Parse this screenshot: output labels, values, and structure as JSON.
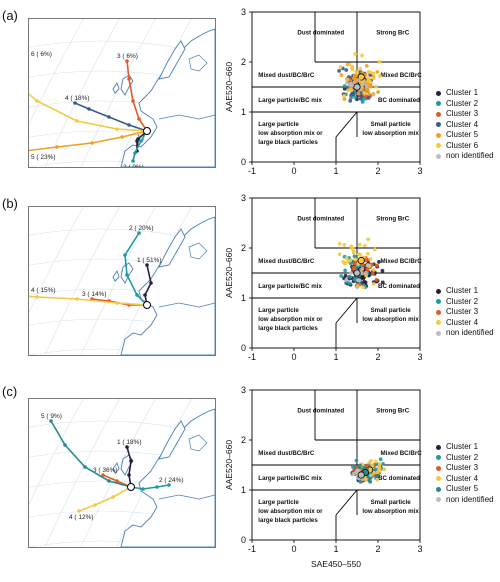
{
  "panels": [
    {
      "label": "(a)",
      "map_trajectories": [
        {
          "id": "1",
          "label": "1 (",
          "color": "#262040",
          "points": [
            [
              -10,
              10
            ],
            [
              -10,
              20
            ],
            [
              -9,
              8
            ],
            [
              0,
              0
            ]
          ]
        },
        {
          "id": "2",
          "label": "2 ( 9%)",
          "color": "#1f9aa0",
          "points": [
            [
              0,
              0
            ],
            [
              -6,
              10
            ],
            [
              -12,
              22
            ],
            [
              -14,
              30
            ]
          ]
        },
        {
          "id": "3",
          "label": "3 ( 6%)",
          "color": "#e05a2b",
          "points": [
            [
              0,
              0
            ],
            [
              -8,
              -12
            ],
            [
              -14,
              -30
            ],
            [
              -18,
              -52
            ],
            [
              -20,
              -70
            ]
          ]
        },
        {
          "id": "4",
          "label": "4 ( 18%)",
          "color": "#3b5a8c",
          "points": [
            [
              0,
              0
            ],
            [
              -18,
              -6
            ],
            [
              -38,
              -14
            ],
            [
              -58,
              -22
            ],
            [
              -72,
              -28
            ]
          ]
        },
        {
          "id": "5",
          "label": "5 ( 23%)",
          "color": "#f0a020",
          "points": [
            [
              0,
              0
            ],
            [
              -25,
              6
            ],
            [
              -55,
              12
            ],
            [
              -90,
              16
            ],
            [
              -122,
              20
            ]
          ]
        },
        {
          "id": "6",
          "label": "6 ( 6%)",
          "color": "#f5c842",
          "points": [
            [
              0,
              0
            ],
            [
              -30,
              -2
            ],
            [
              -70,
              -10
            ],
            [
              -110,
              -30
            ],
            [
              -140,
              -56
            ],
            [
              -152,
              -72
            ]
          ]
        }
      ],
      "chart_data": {
        "type": "scatter",
        "xlabel": "",
        "ylabel": "AAE520–660",
        "xlim": [
          -1,
          3
        ],
        "ylim": [
          0,
          3
        ],
        "xticks": [
          -1,
          0,
          1,
          2,
          3
        ],
        "yticks": [
          0,
          1,
          2,
          3
        ],
        "region_labels": [
          "Dust dominated",
          "Strong BrC",
          "Mixed dust/BC/BrC",
          "Mixed BC/BrC",
          "Large particle/BC mix",
          "BC dominated",
          "Large particle low absorption mix or large black particles",
          "Small particle low absorption mix"
        ],
        "series": [
          {
            "name": "Cluster 1",
            "color": "#262040",
            "center": [
              1.55,
              1.55
            ],
            "spread": [
              0.18,
              0.15
            ],
            "n": 30
          },
          {
            "name": "Cluster 2",
            "color": "#1f9aa0",
            "center": [
              1.55,
              1.45
            ],
            "spread": [
              0.2,
              0.15
            ],
            "n": 25
          },
          {
            "name": "Cluster 3",
            "color": "#e05a2b",
            "center": [
              1.6,
              1.5
            ],
            "spread": [
              0.18,
              0.14
            ],
            "n": 25
          },
          {
            "name": "Cluster 4",
            "color": "#3b5a8c",
            "center": [
              1.5,
              1.55
            ],
            "spread": [
              0.22,
              0.18
            ],
            "n": 35
          },
          {
            "name": "Cluster 5",
            "color": "#f0a020",
            "center": [
              1.6,
              1.6
            ],
            "spread": [
              0.25,
              0.2
            ],
            "n": 40
          },
          {
            "name": "Cluster 6",
            "color": "#f5c842",
            "center": [
              1.6,
              1.7
            ],
            "spread": [
              0.28,
              0.25
            ],
            "n": 30
          },
          {
            "name": "non identified",
            "color": "#bdbdbd",
            "center": [
              1.5,
              1.5
            ],
            "spread": [
              0.15,
              0.12
            ],
            "n": 10
          }
        ]
      }
    },
    {
      "label": "(b)",
      "map_trajectories": [
        {
          "id": "1",
          "label": "1 ( 51%)",
          "color": "#262040",
          "points": [
            [
              0,
              0
            ],
            [
              -2,
              -10
            ],
            [
              4,
              -22
            ],
            [
              0,
              -40
            ]
          ]
        },
        {
          "id": "2",
          "label": "2 ( 20%)",
          "color": "#1f9aa0",
          "points": [
            [
              0,
              0
            ],
            [
              -10,
              -10
            ],
            [
              -20,
              -30
            ],
            [
              -22,
              -50
            ],
            [
              -8,
              -72
            ]
          ]
        },
        {
          "id": "3",
          "label": "3 ( 14%)",
          "color": "#e05a2b",
          "points": [
            [
              0,
              0
            ],
            [
              -18,
              0
            ],
            [
              -38,
              -4
            ],
            [
              -55,
              -6
            ]
          ]
        },
        {
          "id": "4",
          "label": "4 ( 15%)",
          "color": "#f5c842",
          "points": [
            [
              0,
              0
            ],
            [
              -30,
              -2
            ],
            [
              -70,
              -6
            ],
            [
              -110,
              -8
            ],
            [
              -140,
              -10
            ]
          ]
        }
      ],
      "chart_data": {
        "type": "scatter",
        "xlabel": "",
        "ylabel": "AAE520–660",
        "xlim": [
          -1,
          3
        ],
        "ylim": [
          0,
          3
        ],
        "xticks": [
          -1,
          0,
          1,
          2,
          3
        ],
        "yticks": [
          0,
          1,
          2,
          3
        ],
        "region_labels": [
          "Dust dominated",
          "Strong BrC",
          "Mixed dust/BC/BrC",
          "Mixed BC/BrC",
          "Large particle/BC mix",
          "BC dominated",
          "Large particle low absorption mix or large black particles",
          "Small particle low absorption mix"
        ],
        "series": [
          {
            "name": "Cluster 1",
            "color": "#262040",
            "center": [
              1.65,
              1.5
            ],
            "spread": [
              0.25,
              0.15
            ],
            "n": 70
          },
          {
            "name": "Cluster 2",
            "color": "#1f9aa0",
            "center": [
              1.5,
              1.5
            ],
            "spread": [
              0.22,
              0.18
            ],
            "n": 30
          },
          {
            "name": "Cluster 3",
            "color": "#e05a2b",
            "center": [
              1.6,
              1.55
            ],
            "spread": [
              0.2,
              0.15
            ],
            "n": 25
          },
          {
            "name": "Cluster 4",
            "color": "#f5c842",
            "center": [
              1.6,
              1.75
            ],
            "spread": [
              0.3,
              0.3
            ],
            "n": 35
          },
          {
            "name": "non identified",
            "color": "#bdbdbd",
            "center": [
              1.5,
              1.5
            ],
            "spread": [
              0.15,
              0.12
            ],
            "n": 10
          }
        ]
      }
    },
    {
      "label": "(c)",
      "map_trajectories": [
        {
          "id": "1",
          "label": "1 ( 18%)",
          "color": "#262040",
          "points": [
            [
              0,
              0
            ],
            [
              -2,
              -12
            ],
            [
              0,
              -26
            ],
            [
              -4,
              -40
            ]
          ]
        },
        {
          "id": "2",
          "label": "2 ( 24%)",
          "color": "#1f9aa0",
          "points": [
            [
              0,
              0
            ],
            [
              12,
              2
            ],
            [
              26,
              0
            ],
            [
              38,
              -2
            ]
          ]
        },
        {
          "id": "3",
          "label": "3 ( 36%)",
          "color": "#e05a2b",
          "points": [
            [
              0,
              0
            ],
            [
              -14,
              -6
            ],
            [
              -28,
              -12
            ]
          ]
        },
        {
          "id": "4",
          "label": "4 ( 12%)",
          "color": "#f5c842",
          "points": [
            [
              0,
              0
            ],
            [
              -18,
              10
            ],
            [
              -36,
              18
            ],
            [
              -52,
              24
            ]
          ]
        },
        {
          "id": "5",
          "label": "5 ( 9%)",
          "color": "#2a8a8a",
          "points": [
            [
              0,
              0
            ],
            [
              -22,
              -6
            ],
            [
              -46,
              -20
            ],
            [
              -66,
              -42
            ],
            [
              -80,
              -66
            ]
          ]
        }
      ],
      "chart_data": {
        "type": "scatter",
        "xlabel": "SAE450–550",
        "ylabel": "AAE520–660",
        "xlim": [
          -1,
          3
        ],
        "ylim": [
          0,
          3
        ],
        "xticks": [
          -1,
          0,
          1,
          2,
          3
        ],
        "yticks": [
          0,
          1,
          2,
          3
        ],
        "region_labels": [
          "Dust dominated",
          "Strong BrC",
          "Mixed dust/BC/BrC",
          "Mixed BC/BrC",
          "Large particle/BC mix",
          "BC dominated",
          "Large particle low absorption mix or large black particles",
          "Small particle low absorption mix"
        ],
        "series": [
          {
            "name": "Cluster 1",
            "color": "#262040",
            "center": [
              1.7,
              1.35
            ],
            "spread": [
              0.2,
              0.1
            ],
            "n": 30
          },
          {
            "name": "Cluster 2",
            "color": "#1f9aa0",
            "center": [
              1.75,
              1.4
            ],
            "spread": [
              0.22,
              0.12
            ],
            "n": 30
          },
          {
            "name": "Cluster 3",
            "color": "#e05a2b",
            "center": [
              1.7,
              1.35
            ],
            "spread": [
              0.2,
              0.1
            ],
            "n": 35
          },
          {
            "name": "Cluster 4",
            "color": "#f5c842",
            "center": [
              1.8,
              1.4
            ],
            "spread": [
              0.22,
              0.12
            ],
            "n": 30
          },
          {
            "name": "Cluster 5",
            "color": "#2a8a8a",
            "center": [
              1.7,
              1.35
            ],
            "spread": [
              0.18,
              0.1
            ],
            "n": 20
          },
          {
            "name": "non identified",
            "color": "#bdbdbd",
            "center": [
              1.6,
              1.3
            ],
            "spread": [
              0.15,
              0.1
            ],
            "n": 10
          }
        ]
      }
    }
  ]
}
